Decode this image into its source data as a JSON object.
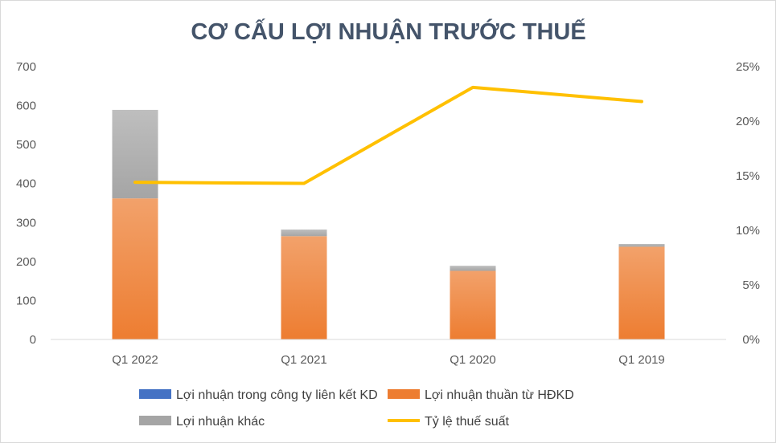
{
  "chart_data": {
    "type": "bar",
    "title": "CƠ CẤU LỢI NHUẬN TRƯỚC THUẾ",
    "categories": [
      "Q1 2022",
      "Q1 2021",
      "Q1 2020",
      "Q1 2019"
    ],
    "stacked": true,
    "series": [
      {
        "name": "Lợi nhuận trong công ty liên kết KD",
        "type": "bar",
        "axis": "left",
        "color": "#4472c4",
        "values": [
          0,
          0,
          0,
          0
        ]
      },
      {
        "name": "Lợi nhuận thuần từ HĐKD",
        "type": "bar",
        "axis": "left",
        "color": "#ed7d31",
        "values": [
          362,
          265,
          176,
          238
        ]
      },
      {
        "name": "Lợi nhuận khác",
        "type": "bar",
        "axis": "left",
        "color": "#a5a5a5",
        "values": [
          227,
          17,
          13,
          7
        ]
      },
      {
        "name": "Tỷ lệ thuế suất",
        "type": "line",
        "axis": "right",
        "color": "#ffc000",
        "values": [
          0.144,
          0.143,
          0.231,
          0.218
        ]
      }
    ],
    "y_left": {
      "min": 0,
      "max": 700,
      "step": 100,
      "ticks": [
        "0",
        "100",
        "200",
        "300",
        "400",
        "500",
        "600",
        "700"
      ]
    },
    "y_right": {
      "min": 0,
      "max": 0.25,
      "step": 0.05,
      "ticks": [
        "0%",
        "5%",
        "10%",
        "15%",
        "20%",
        "25%"
      ]
    },
    "grid": false,
    "legend_position": "bottom"
  }
}
